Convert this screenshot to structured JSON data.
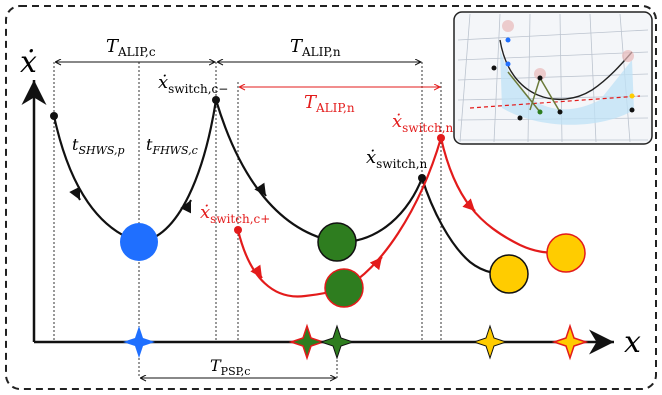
{
  "labels": {
    "y_axis": "ẋ",
    "x_axis": "x",
    "t_alip_c": {
      "main": "T",
      "sub": "ALIP,c"
    },
    "t_alip_n_black": {
      "main": "T",
      "sub": "ALIP,n"
    },
    "t_alip_n_red": {
      "main": "T",
      "sub": "ALIP,n"
    },
    "t_psp_c": {
      "main": "T",
      "sub": "PSP,c"
    },
    "t_shws_p": {
      "main": "t",
      "sub": "SHWS,p"
    },
    "t_fhws_c": {
      "main": "t",
      "sub": "FHWS,c"
    },
    "xdot_switch_c_minus": {
      "main": "ẋ",
      "sub": "switch,c−"
    },
    "xdot_switch_c_plus": {
      "main": "ẋ",
      "sub": "switch,c+"
    },
    "xdot_switch_n_black": {
      "main": "ẋ",
      "sub": "switch,n"
    },
    "xdot_switch_n_red": {
      "main": "ẋ",
      "sub": "switch,n"
    }
  },
  "colors": {
    "black": "#111111",
    "red": "#e31b1b",
    "blue": "#1f6fff",
    "green": "#2e7d1f",
    "yellow": "#ffcc00",
    "frame": "#222222"
  },
  "inset": {
    "description_icon": "robot-walking-3d-render-icon"
  }
}
